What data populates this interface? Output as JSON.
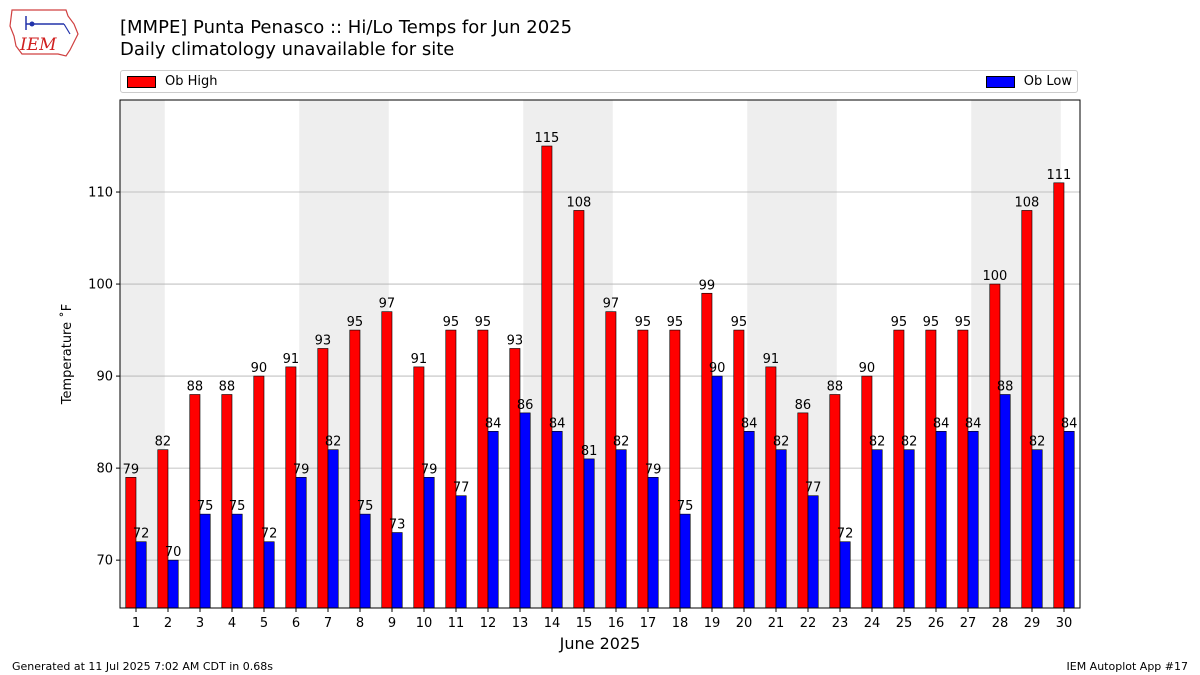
{
  "header": {
    "logo_text": "IEM",
    "title": "[MMPE] Punta Penasco :: Hi/Lo Temps for Jun 2025",
    "subtitle": "Daily climatology unavailable for site"
  },
  "footer": {
    "left": "Generated at 11 Jul 2025 7:02 AM CDT in 0.68s",
    "right": "IEM Autoplot App #17"
  },
  "colors": {
    "high": "#ff0000",
    "low": "#0000ff",
    "weekend_shade": "#eeeeee",
    "grid": "#b0b0b0"
  },
  "chart_data": {
    "type": "bar",
    "xlabel": "June 2025",
    "ylabel": "Temperature ˚F",
    "ylim": [
      64.8,
      120
    ],
    "yticks": [
      70,
      80,
      90,
      100,
      110
    ],
    "grid": "horizontal",
    "legend": "top, above plot",
    "categories": [
      "1",
      "2",
      "3",
      "4",
      "5",
      "6",
      "7",
      "8",
      "9",
      "10",
      "11",
      "12",
      "13",
      "14",
      "15",
      "16",
      "17",
      "18",
      "19",
      "20",
      "21",
      "22",
      "23",
      "24",
      "25",
      "26",
      "27",
      "28",
      "29",
      "30"
    ],
    "shaded_days": [
      1,
      7,
      8,
      14,
      15,
      21,
      22,
      28,
      29
    ],
    "series": [
      {
        "name": "Ob High",
        "values": [
          79,
          82,
          88,
          88,
          90,
          91,
          93,
          95,
          97,
          91,
          95,
          95,
          93,
          115,
          108,
          97,
          95,
          95,
          99,
          95,
          91,
          86,
          88,
          90,
          95,
          95,
          95,
          100,
          108,
          111
        ]
      },
      {
        "name": "Ob Low",
        "values": [
          72,
          70,
          75,
          75,
          72,
          79,
          82,
          75,
          73,
          79,
          77,
          84,
          86,
          84,
          81,
          82,
          79,
          75,
          90,
          84,
          82,
          77,
          72,
          82,
          82,
          84,
          84,
          88,
          82,
          84
        ]
      }
    ]
  }
}
